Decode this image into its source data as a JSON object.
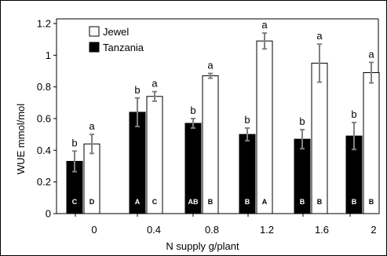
{
  "chart_data": {
    "type": "bar",
    "title": "",
    "xlabel": "N supply g/plant",
    "ylabel": "WUE mmol/mol",
    "ylim": [
      0,
      1.2
    ],
    "yticks": [
      "0",
      "0.2",
      "0.4",
      "0.6",
      "0.8",
      "1",
      "1.2"
    ],
    "xticks": [
      "0",
      "0.4",
      "0.8",
      "1.2",
      "1.6",
      "2"
    ],
    "grid": false,
    "legend_placement": "top-left",
    "categories": [
      "0",
      "0.4",
      "0.8",
      "1.2",
      "1.6",
      "2"
    ],
    "series": [
      {
        "name": "Jewel",
        "fill": "#ffffff",
        "values": [
          0.44,
          0.74,
          0.87,
          1.09,
          0.95,
          0.89
        ],
        "errors": [
          0.06,
          0.03,
          0.015,
          0.05,
          0.12,
          0.065
        ],
        "significance": [
          "a",
          "a",
          "a",
          "a",
          "a",
          "a"
        ],
        "group_letters": [
          "D",
          "C",
          "B",
          "A",
          "B",
          "B"
        ]
      },
      {
        "name": "Tanzania",
        "fill": "#000000",
        "values": [
          0.33,
          0.64,
          0.57,
          0.5,
          0.47,
          0.49
        ],
        "errors": [
          0.065,
          0.09,
          0.03,
          0.04,
          0.06,
          0.085
        ],
        "significance": [
          "b",
          "b",
          "b",
          "b",
          "b",
          "b"
        ],
        "group_letters": [
          "C",
          "A",
          "AB",
          "B",
          "B",
          "B"
        ]
      }
    ],
    "colors": {
      "error_bar": "#808080",
      "axis": "#000000"
    }
  }
}
